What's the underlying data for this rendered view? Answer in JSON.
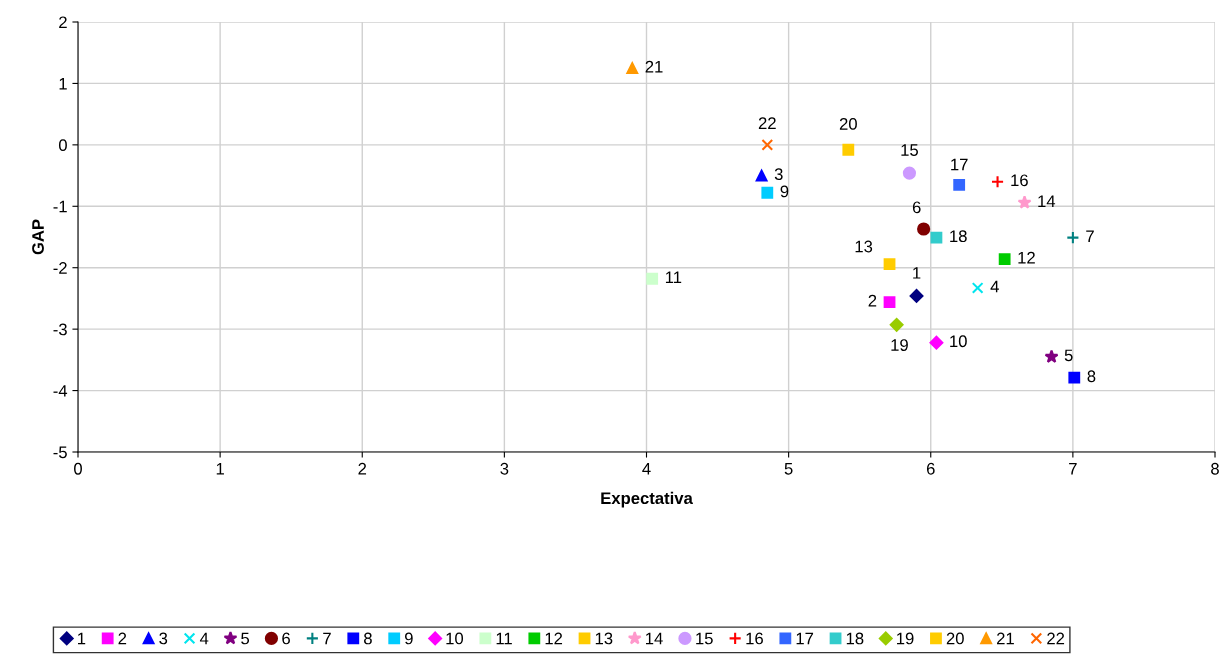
{
  "chart_data": {
    "type": "scatter",
    "xlabel": "Expectativa",
    "ylabel": "GAP",
    "xlim": [
      0,
      8
    ],
    "xticks": [
      0,
      1,
      2,
      3,
      4,
      5,
      6,
      7,
      8
    ],
    "ylim": [
      -5,
      2
    ],
    "yticks": [
      -5,
      -4,
      -3,
      -2,
      -1,
      0,
      1,
      2
    ],
    "grid": true,
    "legend": "bottom",
    "series": [
      {
        "name": "1",
        "color": "#000080",
        "marker": "diamond",
        "x": [
          5.9
        ],
        "values": [
          -2.46
        ]
      },
      {
        "name": "2",
        "color": "#ff00ff",
        "marker": "square",
        "x": [
          5.71
        ],
        "values": [
          -2.56
        ]
      },
      {
        "name": "3",
        "color": "#0000ff",
        "marker": "triangle",
        "x": [
          4.81
        ],
        "values": [
          -0.5
        ]
      },
      {
        "name": "4",
        "color": "#00e5ee",
        "marker": "cross",
        "x": [
          6.33
        ],
        "values": [
          -2.33
        ]
      },
      {
        "name": "5",
        "color": "#800080",
        "marker": "star",
        "x": [
          6.85
        ],
        "values": [
          -3.45
        ]
      },
      {
        "name": "6",
        "color": "#800000",
        "marker": "circle",
        "x": [
          5.95
        ],
        "values": [
          -1.37
        ]
      },
      {
        "name": "7",
        "color": "#008080",
        "marker": "plus",
        "x": [
          7.0
        ],
        "values": [
          -1.51
        ]
      },
      {
        "name": "8",
        "color": "#0000ff",
        "marker": "square",
        "x": [
          7.01
        ],
        "values": [
          -3.79
        ]
      },
      {
        "name": "9",
        "color": "#00ccff",
        "marker": "square",
        "x": [
          4.85
        ],
        "values": [
          -0.78
        ]
      },
      {
        "name": "10",
        "color": "#ff00ff",
        "marker": "diamond",
        "x": [
          6.04
        ],
        "values": [
          -3.22
        ]
      },
      {
        "name": "11",
        "color": "#ccffcc",
        "marker": "square",
        "x": [
          4.04
        ],
        "values": [
          -2.18
        ]
      },
      {
        "name": "12",
        "color": "#00cc00",
        "marker": "square",
        "x": [
          6.52
        ],
        "values": [
          -1.86
        ]
      },
      {
        "name": "13",
        "color": "#ffcc00",
        "marker": "square",
        "x": [
          5.71
        ],
        "values": [
          -1.94
        ]
      },
      {
        "name": "14",
        "color": "#ff99cc",
        "marker": "star",
        "x": [
          6.66
        ],
        "values": [
          -0.94
        ]
      },
      {
        "name": "15",
        "color": "#cc99ff",
        "marker": "circle",
        "x": [
          5.85
        ],
        "values": [
          -0.46
        ]
      },
      {
        "name": "16",
        "color": "#ff0000",
        "marker": "plus",
        "x": [
          6.47
        ],
        "values": [
          -0.6
        ]
      },
      {
        "name": "17",
        "color": "#3366ff",
        "marker": "square",
        "x": [
          6.2
        ],
        "values": [
          -0.65
        ]
      },
      {
        "name": "18",
        "color": "#33cccc",
        "marker": "square",
        "x": [
          6.04
        ],
        "values": [
          -1.51
        ]
      },
      {
        "name": "19",
        "color": "#99cc00",
        "marker": "diamond",
        "x": [
          5.76
        ],
        "values": [
          -2.93
        ]
      },
      {
        "name": "20",
        "color": "#ffcc00",
        "marker": "square",
        "x": [
          5.42
        ],
        "values": [
          -0.08
        ]
      },
      {
        "name": "21",
        "color": "#ff9900",
        "marker": "triangle",
        "x": [
          3.9
        ],
        "values": [
          1.25
        ]
      },
      {
        "name": "22",
        "color": "#ff6600",
        "marker": "cross",
        "x": [
          4.85
        ],
        "values": [
          0.0
        ]
      }
    ]
  }
}
